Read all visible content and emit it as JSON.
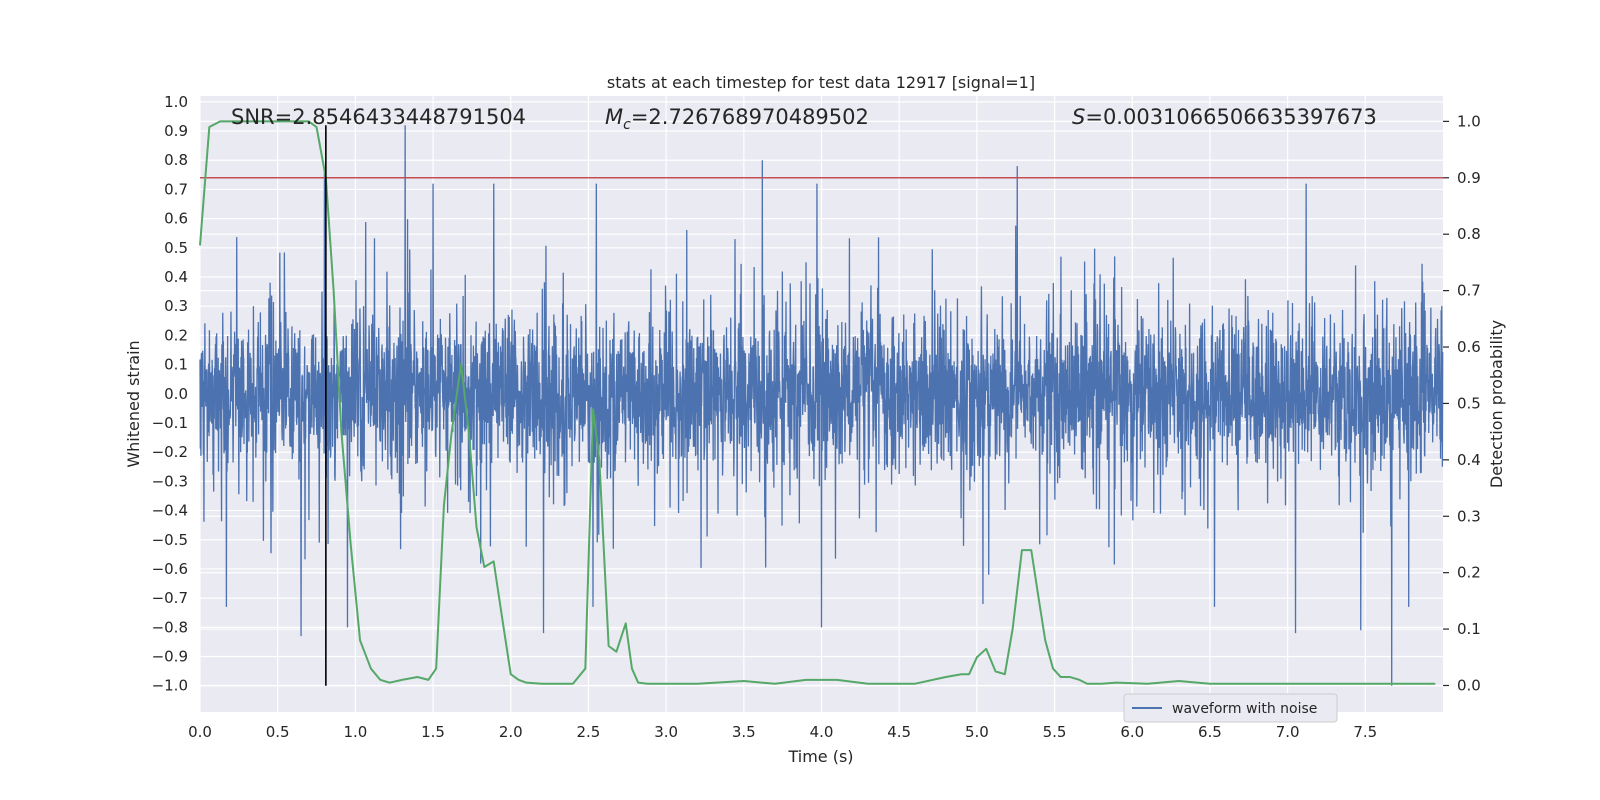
{
  "chart_data": {
    "type": "line",
    "title": "stats at each timestep for test data 12917 [signal=1]",
    "xlabel": "Time (s)",
    "ylabel_left": "Whitened strain",
    "ylabel_right": "Detection probability",
    "xlim": [
      0,
      8
    ],
    "ylim_left": [
      -1.09,
      1.02
    ],
    "ylim_right": [
      -0.047,
      1.045
    ],
    "x_ticks": [
      "0.0",
      "0.5",
      "1.0",
      "1.5",
      "2.0",
      "2.5",
      "3.0",
      "3.5",
      "4.0",
      "4.5",
      "5.0",
      "5.5",
      "6.0",
      "6.5",
      "7.0",
      "7.5"
    ],
    "y_left_ticks": [
      "1.0",
      "0.9",
      "0.8",
      "0.7",
      "0.6",
      "0.5",
      "0.4",
      "0.3",
      "0.2",
      "0.1",
      "0.0",
      "−0.1",
      "−0.2",
      "−0.3",
      "−0.4",
      "−0.5",
      "−0.6",
      "−0.7",
      "−0.8",
      "−0.9",
      "−1.0"
    ],
    "y_right_ticks": [
      "1.0",
      "0.9",
      "0.8",
      "0.7",
      "0.6",
      "0.5",
      "0.4",
      "0.3",
      "0.2",
      "0.1",
      "0.0"
    ],
    "grid": true,
    "annotations": {
      "snr": {
        "symbol": "SNR",
        "value": "=2.8546433448791504"
      },
      "mc": {
        "symbol": "M",
        "sub": "c",
        "value": "=2.726768970489502"
      },
      "s": {
        "symbol": "S",
        "value": "=0.0031066506635397673"
      }
    },
    "legend": {
      "entries": [
        "waveform with noise"
      ],
      "placement": "lower-right"
    },
    "threshold": {
      "value": 0.9,
      "axis": "right",
      "color": "#c44e52"
    },
    "marker_line": {
      "x": 0.81,
      "color": "#000000"
    },
    "waveform": {
      "name": "waveform with noise",
      "color": "#4c72b0",
      "samples": 4096,
      "typical_amplitude": 0.3,
      "peaks": [
        {
          "x": 1.32,
          "y": 0.92
        },
        {
          "x": 3.62,
          "y": 0.8
        },
        {
          "x": 5.26,
          "y": 0.78
        },
        {
          "x": 0.8,
          "y": 0.76
        },
        {
          "x": 1.5,
          "y": 0.72
        },
        {
          "x": 1.89,
          "y": 0.72
        },
        {
          "x": 2.55,
          "y": 0.72
        },
        {
          "x": 3.97,
          "y": 0.72
        },
        {
          "x": 7.12,
          "y": 0.72
        },
        {
          "x": 7.67,
          "y": -1.0
        },
        {
          "x": 0.65,
          "y": -0.83
        },
        {
          "x": 2.21,
          "y": -0.82
        },
        {
          "x": 4.0,
          "y": -0.8
        },
        {
          "x": 7.05,
          "y": -0.82
        },
        {
          "x": 7.47,
          "y": -0.81
        },
        {
          "x": 0.95,
          "y": -0.8
        },
        {
          "x": 0.17,
          "y": -0.73
        },
        {
          "x": 2.53,
          "y": -0.73
        },
        {
          "x": 5.04,
          "y": -0.72
        },
        {
          "x": 6.53,
          "y": -0.73
        },
        {
          "x": 7.78,
          "y": -0.73
        }
      ]
    },
    "probability": {
      "name": "detection probability",
      "color": "#55a868",
      "x": [
        0.0,
        0.06,
        0.13,
        0.2,
        0.3,
        0.4,
        0.5,
        0.6,
        0.7,
        0.75,
        0.81,
        0.86,
        0.91,
        0.97,
        1.03,
        1.1,
        1.16,
        1.22,
        1.3,
        1.4,
        1.47,
        1.52,
        1.57,
        1.62,
        1.68,
        1.73,
        1.78,
        1.83,
        1.89,
        1.95,
        2.0,
        2.05,
        2.1,
        2.2,
        2.3,
        2.4,
        2.48,
        2.53,
        2.57,
        2.63,
        2.68,
        2.74,
        2.78,
        2.82,
        2.88,
        2.93,
        3.0,
        3.2,
        3.5,
        3.7,
        3.9,
        4.1,
        4.3,
        4.6,
        4.8,
        4.9,
        4.95,
        5.0,
        5.06,
        5.12,
        5.18,
        5.23,
        5.29,
        5.35,
        5.4,
        5.44,
        5.49,
        5.54,
        5.6,
        5.66,
        5.71,
        5.8,
        5.9,
        6.1,
        6.3,
        6.5,
        6.8,
        7.0,
        7.3,
        7.6,
        7.8,
        7.95
      ],
      "y": [
        0.78,
        0.99,
        1.0,
        1.0,
        1.0,
        1.0,
        1.0,
        1.0,
        1.0,
        0.99,
        0.9,
        0.7,
        0.45,
        0.25,
        0.08,
        0.03,
        0.01,
        0.005,
        0.01,
        0.015,
        0.01,
        0.03,
        0.32,
        0.45,
        0.57,
        0.45,
        0.28,
        0.21,
        0.22,
        0.11,
        0.02,
        0.01,
        0.005,
        0.003,
        0.003,
        0.003,
        0.03,
        0.49,
        0.4,
        0.07,
        0.06,
        0.11,
        0.03,
        0.005,
        0.003,
        0.003,
        0.003,
        0.003,
        0.008,
        0.003,
        0.01,
        0.01,
        0.003,
        0.003,
        0.015,
        0.02,
        0.02,
        0.05,
        0.065,
        0.025,
        0.02,
        0.1,
        0.24,
        0.24,
        0.15,
        0.08,
        0.03,
        0.015,
        0.015,
        0.01,
        0.003,
        0.003,
        0.005,
        0.003,
        0.008,
        0.003,
        0.003,
        0.003,
        0.003,
        0.003,
        0.003,
        0.003
      ]
    }
  }
}
